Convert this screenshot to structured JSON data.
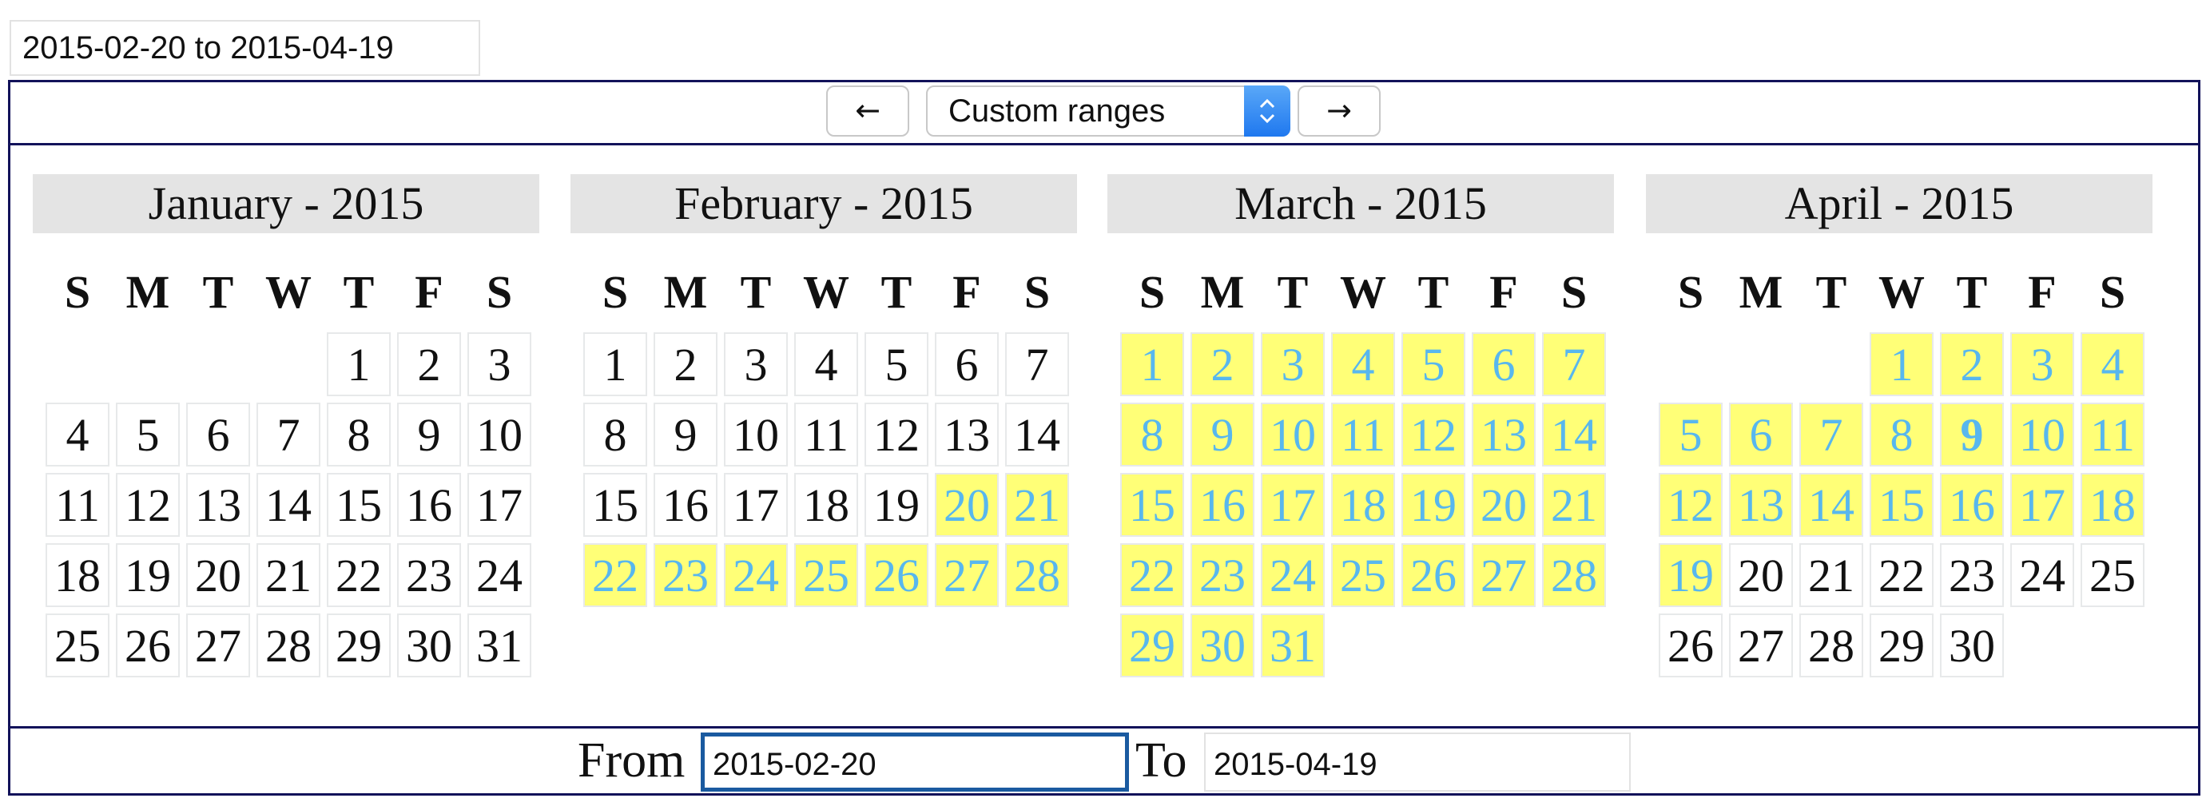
{
  "range_display": "2015-02-20 to 2015-04-19",
  "toolbar": {
    "prev_label": "←",
    "next_label": "→",
    "select_value": "Custom ranges"
  },
  "weekday_labels": [
    "S",
    "M",
    "T",
    "W",
    "T",
    "F",
    "S"
  ],
  "months": [
    {
      "title": "January - 2015",
      "first_weekday": 4,
      "days": 31,
      "range_start": null,
      "range_end": null,
      "bold_day": null
    },
    {
      "title": "February - 2015",
      "first_weekday": 0,
      "days": 28,
      "range_start": 20,
      "range_end": 28,
      "bold_day": null
    },
    {
      "title": "March - 2015",
      "first_weekday": 0,
      "days": 31,
      "range_start": 1,
      "range_end": 31,
      "bold_day": null
    },
    {
      "title": "April - 2015",
      "first_weekday": 3,
      "days": 30,
      "range_start": 1,
      "range_end": 19,
      "bold_day": 9
    }
  ],
  "footer": {
    "from_label": "From",
    "from_value": "2015-02-20",
    "to_label": "To",
    "to_value": "2015-04-19"
  },
  "colors": {
    "range_background": "#ffff77",
    "range_text": "#58b7ee",
    "border": "#12125a",
    "focus_border": "#1a5aa0"
  }
}
